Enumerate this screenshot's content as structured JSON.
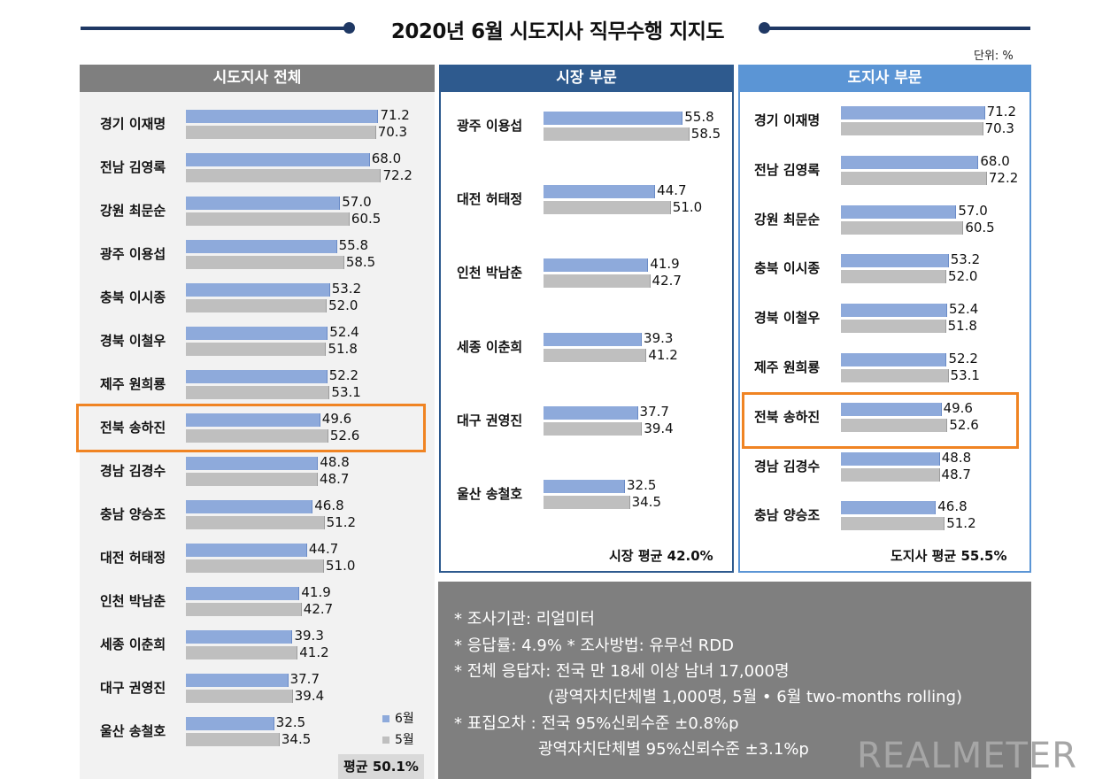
{
  "title": "2020년 6월 시도지사 직무수행 지지도",
  "unit": "단위: %",
  "colors": {
    "june": "#8eaadb",
    "may": "#bfbfbf",
    "highlight": "#f08423"
  },
  "legend": {
    "june": "6월",
    "may": "5월"
  },
  "panels": {
    "all": {
      "header": "시도지사 전체",
      "average": "평균 50.1%"
    },
    "mayor": {
      "header": "시장 부문",
      "average": "시장 평균 42.0%"
    },
    "governor": {
      "header": "도지사 부문",
      "average": "도지사 평균 55.5%"
    }
  },
  "chart_data": [
    {
      "type": "bar",
      "title": "시도지사 전체",
      "categories": [
        "경기 이재명",
        "전남 김영록",
        "강원 최문순",
        "광주 이용섭",
        "충북 이시종",
        "경북 이철우",
        "제주 원희룡",
        "전북 송하진",
        "경남 김경수",
        "충남 양승조",
        "대전 허태정",
        "인천 박남춘",
        "세종 이춘희",
        "대구 권영진",
        "울산 송철호"
      ],
      "series": [
        {
          "name": "6월",
          "values": [
            71.2,
            68.0,
            57.0,
            55.8,
            53.2,
            52.4,
            52.2,
            49.6,
            48.8,
            46.8,
            44.7,
            41.9,
            39.3,
            37.7,
            32.5
          ]
        },
        {
          "name": "5월",
          "values": [
            70.3,
            72.2,
            60.5,
            58.5,
            52.0,
            51.8,
            53.1,
            52.6,
            48.7,
            51.2,
            51.0,
            42.7,
            41.2,
            39.4,
            34.5
          ]
        }
      ],
      "labels_jun": [
        "71.2",
        "68.0",
        "57.0",
        "55.8",
        "53.2",
        "52.4",
        "52.2",
        "49.6",
        "48.8",
        "46.8",
        "44.7",
        "41.9",
        "39.3",
        "37.7",
        "32.5"
      ],
      "labels_may": [
        "70.3",
        "72.2",
        "60.5",
        "58.5",
        "52.0",
        "51.8",
        "53.1",
        "52.6",
        "48.7",
        "51.2",
        "51.0",
        "42.7",
        "41.2",
        "39.4",
        "34.5"
      ],
      "highlight": "전북 송하진"
    },
    {
      "type": "bar",
      "title": "시장 부문",
      "categories": [
        "광주 이용섭",
        "대전 허태정",
        "인천 박남춘",
        "세종 이춘희",
        "대구 권영진",
        "울산 송철호"
      ],
      "series": [
        {
          "name": "6월",
          "values": [
            55.8,
            44.7,
            41.9,
            39.3,
            37.7,
            32.5
          ]
        },
        {
          "name": "5월",
          "values": [
            58.5,
            51.0,
            42.7,
            41.2,
            39.4,
            34.5
          ]
        }
      ],
      "labels_jun": [
        "55.8",
        "44.7",
        "41.9",
        "39.3",
        "37.7",
        "32.5"
      ],
      "labels_may": [
        "58.5",
        "51.0",
        "42.7",
        "41.2",
        "39.4",
        "34.5"
      ]
    },
    {
      "type": "bar",
      "title": "도지사 부문",
      "categories": [
        "경기 이재명",
        "전남 김영록",
        "강원 최문순",
        "충북 이시종",
        "경북 이철우",
        "제주 원희룡",
        "전북 송하진",
        "경남 김경수",
        "충남 양승조"
      ],
      "series": [
        {
          "name": "6월",
          "values": [
            71.2,
            68.0,
            57.0,
            53.2,
            52.4,
            52.2,
            49.6,
            48.8,
            46.8
          ]
        },
        {
          "name": "5월",
          "values": [
            70.3,
            72.2,
            60.5,
            52.0,
            51.8,
            53.1,
            52.6,
            48.7,
            51.2
          ]
        }
      ],
      "labels_jun": [
        "71.2",
        "68.0",
        "57.0",
        "53.2",
        "52.4",
        "52.2",
        "49.6",
        "48.8",
        "46.8"
      ],
      "labels_may": [
        "70.3",
        "72.2",
        "60.5",
        "52.0",
        "51.8",
        "53.1",
        "52.6",
        "48.7",
        "51.2"
      ],
      "highlight": "전북 송하진"
    }
  ],
  "notes": [
    "* 조사기관: 리얼미터",
    "* 응답률: 4.9% * 조사방법: 유무선 RDD",
    "* 전체 응답자: 전국 만 18세 이상 남녀 17,000명",
    "(광역자치단체별 1,000명, 5월 • 6월 two-months rolling)",
    "* 표집오차 : 전국 95%신뢰수준 ±0.8%p",
    "광역자치단체별 95%신뢰수준 ±3.1%p"
  ],
  "logo": "REALMETER"
}
